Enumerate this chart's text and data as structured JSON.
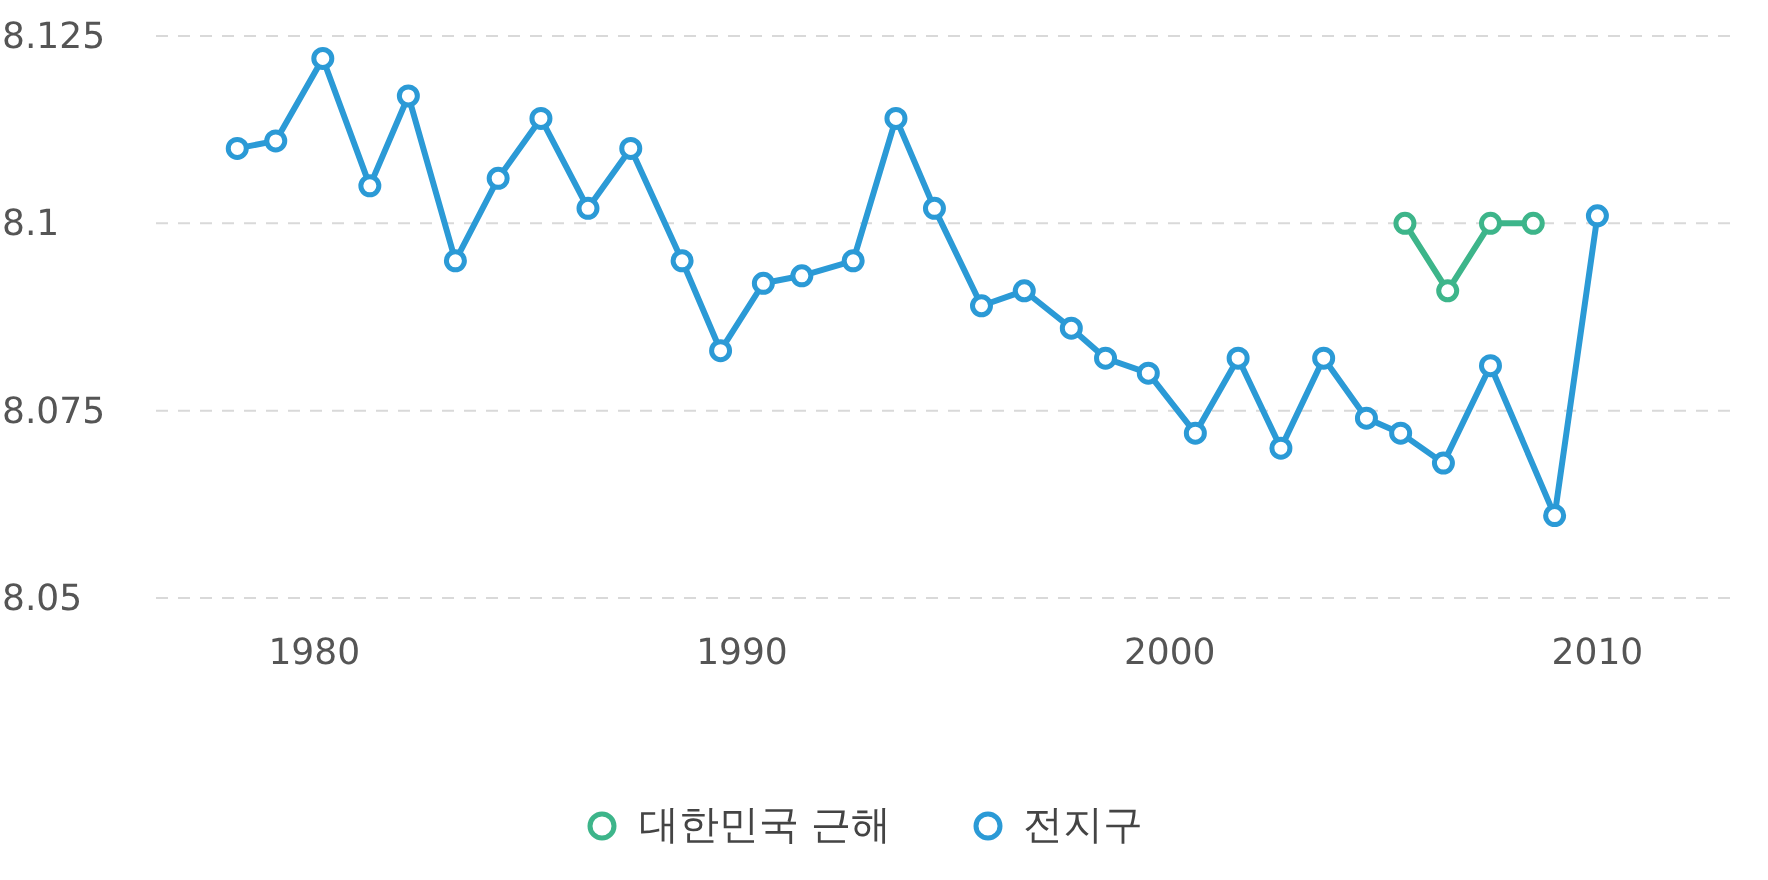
{
  "chart_data": {
    "type": "line",
    "xlim": [
      1976.3,
      2013.1
    ],
    "xticks": [
      1980,
      1990,
      2000,
      2010
    ],
    "ylim": [
      8.05,
      8.125
    ],
    "yticks": [
      8.05,
      8.075,
      8.1,
      8.125
    ],
    "grid": "y",
    "legend": "bottom",
    "marker": "circle",
    "line_style": "solid",
    "series": [
      {
        "name": "대한민국 근해",
        "color": "#3db58a",
        "x": [
          2005.5,
          2006.5,
          2007.5,
          2008.5
        ],
        "values": [
          8.1,
          8.091,
          8.1,
          8.1
        ]
      },
      {
        "name": "전지구",
        "color": "#2b9ad6",
        "x": [
          1978.2,
          1979.1,
          1980.2,
          1981.3,
          1982.2,
          1983.3,
          1984.3,
          1985.3,
          1986.4,
          1987.4,
          1988.6,
          1989.5,
          1990.5,
          1991.4,
          1992.6,
          1993.6,
          1994.5,
          1995.6,
          1996.6,
          1997.7,
          1998.5,
          1999.5,
          2000.6,
          2001.6,
          2002.6,
          2003.6,
          2004.6,
          2005.4,
          2006.4,
          2007.5,
          2009.0,
          2010.0
        ],
        "values": [
          8.11,
          8.111,
          8.122,
          8.105,
          8.117,
          8.095,
          8.106,
          8.114,
          8.102,
          8.11,
          8.095,
          8.083,
          8.092,
          8.093,
          8.095,
          8.114,
          8.102,
          8.089,
          8.091,
          8.086,
          8.082,
          8.08,
          8.072,
          8.082,
          8.07,
          8.082,
          8.074,
          8.072,
          8.068,
          8.081,
          8.061,
          8.101
        ]
      }
    ]
  }
}
